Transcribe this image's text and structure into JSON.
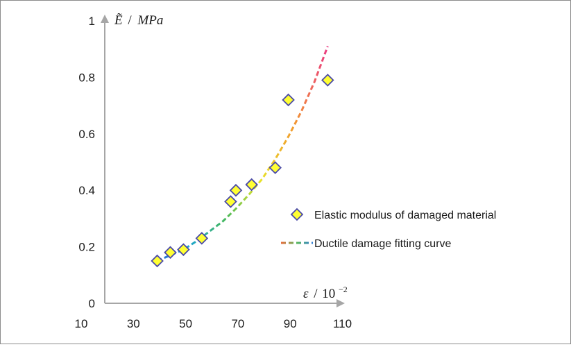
{
  "chart_data": {
    "type": "scatter",
    "y_axis": {
      "title_symbol": "Ẽ",
      "title_unit": "MPa",
      "tick_labels": [
        "0",
        "0.2",
        "0.4",
        "0.6",
        "0.8",
        "1"
      ],
      "ylim": [
        0,
        1
      ]
    },
    "x_axis": {
      "title_symbol": "ε",
      "title_unit_base": "10",
      "title_unit_exp": "−2",
      "tick_labels": [
        "10",
        "30",
        "50",
        "70",
        "90",
        "110"
      ],
      "xlim": [
        10,
        110
      ]
    },
    "series": [
      {
        "name": "Elastic modulus of damaged material",
        "kind": "points",
        "marker": "diamond",
        "color": "#ffff33",
        "edge_color": "#4a4aa8",
        "x": [
          40,
          45,
          50,
          57,
          68,
          70,
          76,
          85,
          90,
          105
        ],
        "y": [
          0.15,
          0.18,
          0.19,
          0.23,
          0.36,
          0.4,
          0.42,
          0.48,
          0.72,
          0.79
        ]
      },
      {
        "name": "Ductile damage fitting curve",
        "kind": "curve",
        "style": "dashed",
        "gradient": [
          "#2e6bd6",
          "#1fa6c9",
          "#46b85c",
          "#e7e42a",
          "#f29a2e",
          "#ea3a82"
        ],
        "x": [
          40,
          45,
          50,
          55,
          60,
          65,
          70,
          75,
          80,
          85,
          90,
          95,
          100,
          105
        ],
        "y": [
          0.15,
          0.17,
          0.19,
          0.22,
          0.255,
          0.29,
          0.335,
          0.385,
          0.44,
          0.51,
          0.59,
          0.68,
          0.785,
          0.91
        ]
      }
    ],
    "grid": false,
    "legend_position": "right"
  }
}
